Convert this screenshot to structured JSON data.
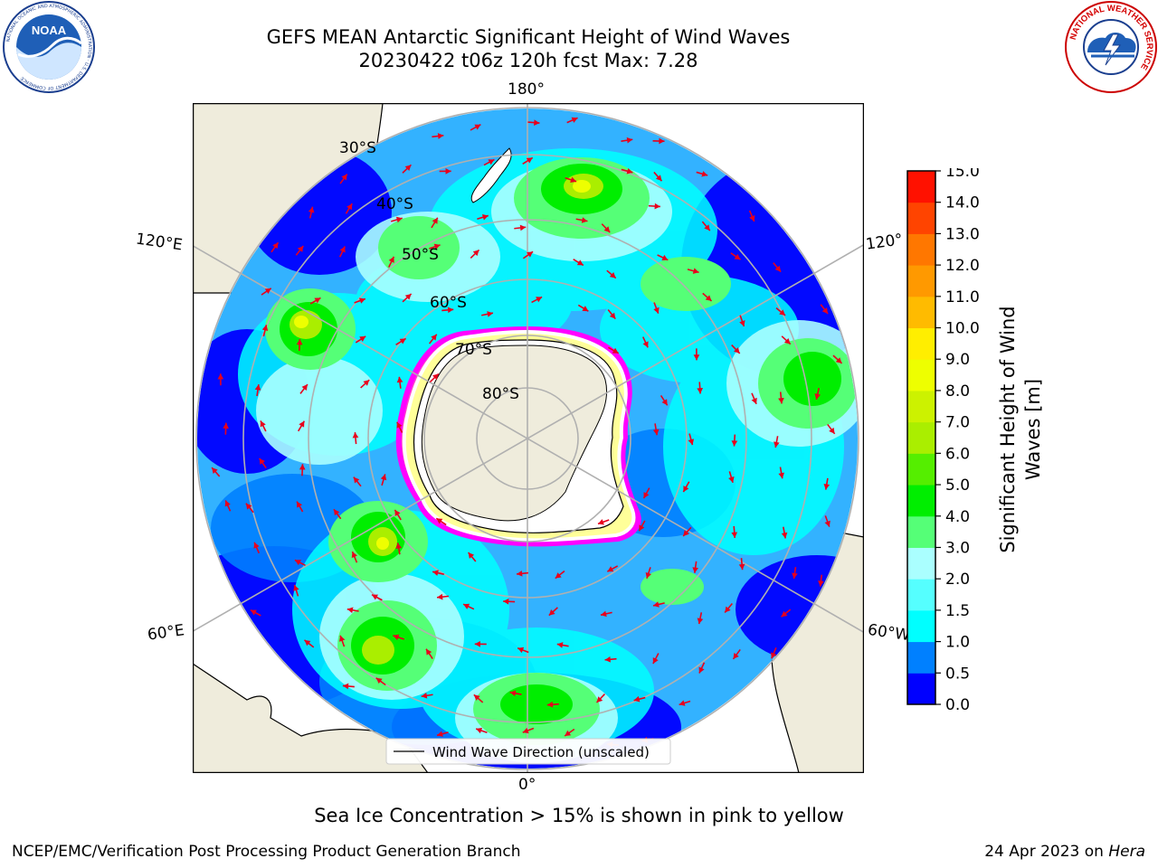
{
  "title": {
    "line1": "GEFS MEAN Antarctic Significant Height of Wind Waves",
    "line2": "20230422 t06z 120h fcst   Max: 7.28"
  },
  "logos": {
    "left": {
      "name": "NOAA",
      "text": "NOAA",
      "ring_text": "NATIONAL OCEANIC AND ATMOSPHERIC ADMINISTRATION · U.S. DEPARTMENT OF COMMERCE"
    },
    "right": {
      "name": "National Weather Service",
      "ring_text": "NATIONAL WEATHER SERVICE"
    }
  },
  "map": {
    "projection": "south-polar-stereographic",
    "longitude_labels": [
      "180°",
      "120°E",
      "120°",
      "60°E",
      "60°W",
      "0°"
    ],
    "latitude_labels": [
      "30°S",
      "40°S",
      "50°S",
      "60°S",
      "70°S",
      "80°S"
    ],
    "legend_label": "Wind Wave Direction (unscaled)",
    "sea_ice_colors": [
      "#ff00ff",
      "#ffff66"
    ],
    "land_color": "#efecdc"
  },
  "colorbar": {
    "label_line1": "Significant Height of Wind",
    "label_line2": "Waves [m]",
    "ticks": [
      "0.0",
      "0.5",
      "1.0",
      "1.5",
      "2.0",
      "3.0",
      "4.0",
      "5.0",
      "6.0",
      "7.0",
      "8.0",
      "9.0",
      "10.0",
      "11.0",
      "12.0",
      "13.0",
      "14.0",
      "15.0"
    ],
    "colors": [
      "#0000ff",
      "#0080ff",
      "#00ffff",
      "#55ffff",
      "#aaffff",
      "#55ff77",
      "#00ee00",
      "#55ee00",
      "#aaee00",
      "#ccf200",
      "#eeff00",
      "#ffee00",
      "#ffbb00",
      "#ff9900",
      "#ff7700",
      "#ff4400",
      "#ff1100"
    ]
  },
  "footer": {
    "note": "Sea Ice Concentration > 15% is shown in pink to yellow",
    "credit_left": "NCEP/EMC/Verification Post Processing Product Generation Branch",
    "credit_right_date": "24 Apr 2023 on ",
    "credit_right_host": "Hera"
  }
}
